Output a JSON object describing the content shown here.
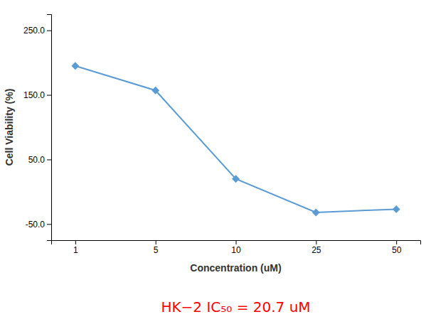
{
  "chart_data": {
    "type": "line",
    "xlabel": "Concentration (uM)",
    "ylabel": "Cell Viability (%)",
    "categories": [
      "1",
      "5",
      "10",
      "25",
      "50"
    ],
    "values": [
      195,
      157,
      20,
      -32,
      -27
    ],
    "color": "#5b9bd5",
    "marker": "diamond",
    "ylim": [
      -75,
      275
    ],
    "yticks": [
      {
        "value": -50.0,
        "label": "-50.0"
      },
      {
        "value": 50.0,
        "label": "50.0"
      },
      {
        "value": 150.0,
        "label": "150.0"
      },
      {
        "value": 250.0,
        "label": "250.0"
      }
    ],
    "grid": false,
    "annotations": [
      {
        "text": "HK−2 IC₅₀ = 20.7 uM",
        "color": "#ff0000"
      }
    ]
  }
}
